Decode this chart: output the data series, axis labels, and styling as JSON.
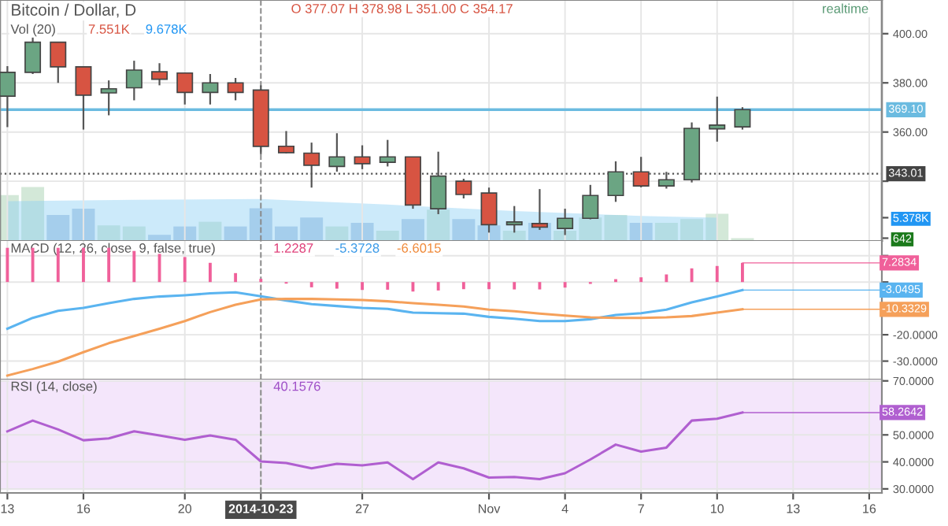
{
  "chart_data": [
    {
      "type": "candlestick",
      "title": "Bitcoin / Dollar, D",
      "annotations": [
        "O 377.07 H 378.98 L 351.00 C 354.17",
        "Vol (20)",
        "7.551K",
        "9.678K",
        "realtime"
      ],
      "x": [
        "2014-10-13",
        "2014-10-14",
        "2014-10-15",
        "2014-10-16",
        "2014-10-17",
        "2014-10-18",
        "2014-10-19",
        "2014-10-20",
        "2014-10-21",
        "2014-10-22",
        "2014-10-23",
        "2014-10-24",
        "2014-10-25",
        "2014-10-26",
        "2014-10-27",
        "2014-10-28",
        "2014-10-29",
        "2014-10-30",
        "2014-10-31",
        "2014-11-01",
        "2014-11-02",
        "2014-11-03",
        "2014-11-04",
        "2014-11-05",
        "2014-11-06",
        "2014-11-07",
        "2014-11-08",
        "2014-11-09",
        "2014-11-10",
        "2014-11-11"
      ],
      "ohlc": [
        [
          374.6,
          386.8,
          362,
          384.3
        ],
        [
          384.3,
          404,
          383.6,
          396.5
        ],
        [
          396.5,
          396.5,
          380,
          386.5
        ],
        [
          386.5,
          386.5,
          361,
          375
        ],
        [
          375.9,
          381,
          366.8,
          377.6
        ],
        [
          378,
          389,
          372.9,
          385.2
        ],
        [
          384.5,
          388,
          379,
          381.5
        ],
        [
          384,
          384,
          371.2,
          376.1
        ],
        [
          376.1,
          383.6,
          371.2,
          380
        ],
        [
          380,
          382,
          372.9,
          376.1
        ],
        [
          377.07,
          378.98,
          351.0,
          354.17
        ],
        [
          354.2,
          360.4,
          351.4,
          351.6
        ],
        [
          351.4,
          355.7,
          337.4,
          346.5
        ],
        [
          346,
          359.5,
          343.9,
          349.9
        ],
        [
          349.9,
          354.6,
          344.9,
          347.1
        ],
        [
          347.7,
          356.8,
          346,
          349.9
        ],
        [
          349.9,
          349.9,
          328.8,
          330.3
        ],
        [
          328.8,
          352,
          326.6,
          342.1
        ],
        [
          340,
          341,
          333,
          334.6
        ],
        [
          335.2,
          337.4,
          319.1,
          322.3
        ],
        [
          322.3,
          329.9,
          319.1,
          323.4
        ],
        [
          322.8,
          336.8,
          320.2,
          321.3
        ],
        [
          320.8,
          328.8,
          318.1,
          324.9
        ],
        [
          324.9,
          338.5,
          324.5,
          334.2
        ],
        [
          334.2,
          348.1,
          331.6,
          343.8
        ],
        [
          343.8,
          349.9,
          337.5,
          338.1
        ],
        [
          338.1,
          343.8,
          337,
          340.6
        ],
        [
          340.6,
          363.9,
          339.5,
          361.5
        ],
        [
          361.3,
          374.4,
          356.1,
          362.8
        ],
        [
          362.1,
          370.1,
          361,
          369.1
        ]
      ],
      "colors": [
        "#6ba583",
        "#6ba583",
        "#d75442",
        "#d75442",
        "#6ba583",
        "#6ba583",
        "#d75442",
        "#d75442",
        "#6ba583",
        "#d75442",
        "#d75442",
        "#d75442",
        "#d75442",
        "#6ba583",
        "#d75442",
        "#6ba583",
        "#d75442",
        "#6ba583",
        "#d75442",
        "#d75442",
        "#6ba583",
        "#d75442",
        "#6ba583",
        "#6ba583",
        "#6ba583",
        "#d75442",
        "#6ba583",
        "#6ba583",
        "#6ba583",
        "#6ba583"
      ],
      "series": [
        {
          "type": "bar",
          "axis": "y2",
          "values": [
            10600,
            12450,
            6000,
            7460,
            3600,
            3350,
            1420,
            3350,
            4440,
            3350,
            7551,
            3350,
            5420,
            3350,
            4190,
            2370,
            5060,
            7240,
            5060,
            3600,
            2370,
            4190,
            2370,
            5420,
            6000,
            4190,
            4190,
            5060,
            6260,
            642
          ],
          "colors": [
            "#d3e8d8",
            "#d3e8d8",
            "#b9cde6",
            "#b9cde6",
            "#d3e8d8",
            "#d3e8d8",
            "#b9cde6",
            "#b9cde6",
            "#d3e8d8",
            "#b9cde6",
            "#b9cde6",
            "#b9cde6",
            "#b9cde6",
            "#d3e8d8",
            "#b9cde6",
            "#d3e8d8",
            "#b9cde6",
            "#d3e8d8",
            "#b9cde6",
            "#b9cde6",
            "#d3e8d8",
            "#b9cde6",
            "#d3e8d8",
            "#d3e8d8",
            "#d3e8d8",
            "#b9cde6",
            "#d3e8d8",
            "#d3e8d8",
            "#d3e8d8",
            "#d3e8d8"
          ]
        },
        {
          "type": "area",
          "axis": "y2",
          "color": "#8fd0f5",
          "x": [
            "2014-10-13",
            "2014-10-18",
            "2014-10-23",
            "2014-10-28",
            "2014-11-02",
            "2014-11-07",
            "2014-11-10"
          ],
          "values": [
            9170,
            9500,
            9678,
            8400,
            6900,
            5800,
            5378
          ]
        }
      ],
      "xlim": [
        "2014-10-12T17:00",
        "2014-11-16T12:00"
      ],
      "ylim": [
        315.7,
        413.7
      ],
      "yticks": [
        {
          "value": 400,
          "label": "400.00"
        },
        {
          "value": 380,
          "label": "380.00"
        },
        {
          "value": 360,
          "label": "360.00"
        },
        {
          "value": 340,
          "label": null
        }
      ],
      "y2lim": [
        0,
        55700
      ],
      "y2ticks": [
        642,
        {
          "value": 5378,
          "label": "5.378K"
        }
      ],
      "xticks": [
        {
          "value": "2014-10-13",
          "label": null
        },
        {
          "value": "2014-10-16",
          "label": null
        },
        {
          "value": "2014-10-20",
          "label": null
        },
        {
          "value": "2014-10-27",
          "label": null
        },
        {
          "value": "2014-11-01",
          "label": null
        },
        {
          "value": "2014-11-04",
          "label": null
        },
        {
          "value": "2014-11-07",
          "label": null
        },
        {
          "value": "2014-11-10",
          "label": null
        },
        {
          "value": "2014-11-13",
          "label": null
        },
        {
          "value": "2014-11-16",
          "label": null
        }
      ],
      "ref_lines": [
        {
          "axis": "y",
          "value": 369.1,
          "label": "369.10",
          "color": "#6bbbe0",
          "line_style": "solid"
        },
        {
          "axis": "y",
          "value": 343.01,
          "label": "343.01",
          "color": "#555555",
          "line_style": "dotted"
        },
        {
          "axis": "x",
          "value": "2014-10-23",
          "color": "#888888",
          "line_style": "dashed"
        }
      ],
      "grid": true,
      "tick_labels": "y"
    },
    {
      "type": "line",
      "title": "MACD (12, 26, close, 9, false, true)",
      "annotations": [
        "1.2287",
        "-5.3728",
        "-6.6015",
        {
          "text": "7.2834",
          "x": "2014-11-11",
          "y": 7.2834
        },
        {
          "text": "-3.0495",
          "x": "2014-11-11",
          "y": -3.05
        },
        {
          "text": "-10.3329",
          "x": "2014-11-11",
          "y": -10.33
        }
      ],
      "x": [
        "2014-10-13",
        "2014-10-14",
        "2014-10-15",
        "2014-10-16",
        "2014-10-17",
        "2014-10-18",
        "2014-10-19",
        "2014-10-20",
        "2014-10-21",
        "2014-10-22",
        "2014-10-23",
        "2014-10-24",
        "2014-10-25",
        "2014-10-26",
        "2014-10-27",
        "2014-10-28",
        "2014-10-29",
        "2014-10-30",
        "2014-10-31",
        "2014-11-01",
        "2014-11-02",
        "2014-11-03",
        "2014-11-04",
        "2014-11-05",
        "2014-11-06",
        "2014-11-07",
        "2014-11-08",
        "2014-11-09",
        "2014-11-10",
        "2014-11-11"
      ],
      "series": [
        {
          "type": "bar",
          "color": "#f0609a",
          "values": [
            13,
            13,
            13,
            13,
            13,
            11.8,
            10.7,
            9.5,
            7.3,
            3.4,
            1.23,
            -0.6,
            -2.0,
            -2.5,
            -3.0,
            -2.9,
            -3.6,
            -3.2,
            -2.7,
            -2.7,
            -2.8,
            -2.8,
            -2.1,
            -0.7,
            1.1,
            1.8,
            2.9,
            5.2,
            6.1,
            7.28
          ]
        },
        {
          "type": "line",
          "color": "#5ab4f0",
          "values": [
            -17.7,
            -13.6,
            -10.9,
            -9.8,
            -8.0,
            -6.4,
            -5.5,
            -5.0,
            -4.3,
            -3.9,
            -5.37,
            -7.0,
            -8.4,
            -9.1,
            -9.8,
            -10.2,
            -11.6,
            -11.8,
            -12.0,
            -13.2,
            -13.9,
            -14.8,
            -14.8,
            -14.1,
            -12.5,
            -11.8,
            -10.5,
            -7.7,
            -5.5,
            -3.05
          ]
        },
        {
          "type": "line",
          "color": "#f5a05a",
          "values": [
            -35.5,
            -33.0,
            -30.2,
            -26.6,
            -23.2,
            -20.5,
            -17.7,
            -14.8,
            -11.4,
            -8.6,
            -6.6,
            -6.4,
            -6.4,
            -6.6,
            -6.8,
            -7.3,
            -8.0,
            -8.6,
            -9.3,
            -10.5,
            -11.1,
            -12.0,
            -12.7,
            -13.4,
            -13.6,
            -13.6,
            -13.4,
            -12.9,
            -11.6,
            -10.33
          ]
        }
      ],
      "xlim": [
        "2014-10-12T17:00",
        "2014-11-16T12:00"
      ],
      "ylim": [
        -37,
        15.6
      ],
      "yticks": [
        {
          "value": 10,
          "label": null
        },
        {
          "value": 0,
          "label": null
        },
        {
          "value": -20,
          "label": "-20.0000"
        },
        {
          "value": -30,
          "label": "-30.0000"
        }
      ],
      "xticks": [
        {
          "value": "2014-10-13",
          "label": null
        },
        {
          "value": "2014-10-16",
          "label": null
        },
        {
          "value": "2014-10-20",
          "label": null
        },
        {
          "value": "2014-10-27",
          "label": null
        },
        {
          "value": "2014-11-01",
          "label": null
        },
        {
          "value": "2014-11-04",
          "label": null
        },
        {
          "value": "2014-11-07",
          "label": null
        },
        {
          "value": "2014-11-10",
          "label": null
        },
        {
          "value": "2014-11-13",
          "label": null
        },
        {
          "value": "2014-11-16",
          "label": null
        }
      ],
      "ref_lines": [
        {
          "axis": "x",
          "value": "2014-10-23",
          "color": "#888888",
          "line_style": "dashed"
        }
      ],
      "grid": true,
      "tick_labels": "y"
    },
    {
      "type": "line",
      "title": "RSI (14, close)",
      "annotations": [
        "40.1576",
        {
          "text": "58.2642",
          "x": "2014-11-11",
          "y": 58.26
        }
      ],
      "x": [
        "2014-10-13",
        "2014-10-14",
        "2014-10-15",
        "2014-10-16",
        "2014-10-17",
        "2014-10-18",
        "2014-10-19",
        "2014-10-20",
        "2014-10-21",
        "2014-10-22",
        "2014-10-23",
        "2014-10-24",
        "2014-10-25",
        "2014-10-26",
        "2014-10-27",
        "2014-10-28",
        "2014-10-29",
        "2014-10-30",
        "2014-10-31",
        "2014-11-01",
        "2014-11-02",
        "2014-11-03",
        "2014-11-04",
        "2014-11-05",
        "2014-11-06",
        "2014-11-07",
        "2014-11-08",
        "2014-11-09",
        "2014-11-10",
        "2014-11-11"
      ],
      "series": [
        {
          "color": "#b05fd0",
          "values": [
            51.3,
            55.3,
            52,
            48,
            48.7,
            51.3,
            49.8,
            48.2,
            49.8,
            48.2,
            40.16,
            39.6,
            37.6,
            39.3,
            38.7,
            39.8,
            33.6,
            39.8,
            37.6,
            34.2,
            34.4,
            33.6,
            35.8,
            40.9,
            46.4,
            43.8,
            45.3,
            55.3,
            56,
            58.26
          ]
        }
      ],
      "bands": [
        {
          "axis": "y",
          "from": 30,
          "to": 70,
          "color": "#f4e6fb"
        }
      ],
      "xlim": [
        "2014-10-12T17:00",
        "2014-11-16T12:00"
      ],
      "ylim": [
        28.5,
        70.5
      ],
      "yticks": [
        {
          "value": 70,
          "label": "70.0000"
        },
        {
          "value": 50,
          "label": "50.0000"
        },
        {
          "value": 40,
          "label": "40.0000"
        },
        {
          "value": 30,
          "label": "30.0000"
        }
      ],
      "xticks": [
        {
          "value": "2014-10-13",
          "label": "13"
        },
        {
          "value": "2014-10-16",
          "label": "16"
        },
        {
          "value": "2014-10-20",
          "label": "20"
        },
        {
          "value": "2014-10-23",
          "label": "2014-10-23"
        },
        {
          "value": "2014-10-27",
          "label": "27"
        },
        {
          "value": "2014-11-01",
          "label": "Nov"
        },
        {
          "value": "2014-11-04",
          "label": "4"
        },
        {
          "value": "2014-11-07",
          "label": "7"
        },
        {
          "value": "2014-11-10",
          "label": "10"
        },
        {
          "value": "2014-11-13",
          "label": "13"
        },
        {
          "value": "2014-11-16",
          "label": "16"
        }
      ],
      "ref_lines": [
        {
          "axis": "x",
          "value": "2014-10-23",
          "color": "#888888",
          "line_style": "dashed"
        }
      ],
      "grid": true
    }
  ]
}
